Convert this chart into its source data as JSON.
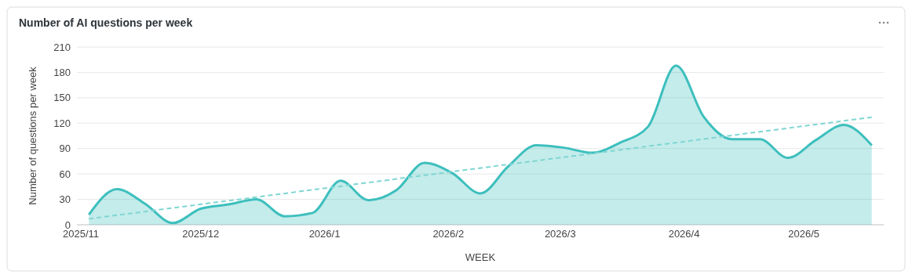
{
  "chart_data": {
    "type": "area",
    "title": "Number of AI questions per week",
    "xlabel": "WEEK",
    "ylabel": "Number of questions per week",
    "x": [
      "2025-11-03",
      "2025-11-10",
      "2025-11-17",
      "2025-11-24",
      "2025-12-01",
      "2025-12-08",
      "2025-12-15",
      "2025-12-22",
      "2025-12-29",
      "2026-01-05",
      "2026-01-12",
      "2026-01-19",
      "2026-01-26",
      "2026-02-02",
      "2026-02-09",
      "2026-02-16",
      "2026-02-23",
      "2026-03-02",
      "2026-03-09",
      "2026-03-16",
      "2026-03-23",
      "2026-03-30",
      "2026-04-06",
      "2026-04-13",
      "2026-04-20",
      "2026-04-27",
      "2026-05-04",
      "2026-05-11",
      "2026-05-18"
    ],
    "series": [
      {
        "color": "#3dbfbd",
        "values": [
          12,
          42,
          25,
          2,
          19,
          24,
          30,
          10,
          14,
          52,
          29,
          41,
          73,
          61,
          37,
          69,
          94,
          91,
          85,
          97,
          116,
          188,
          127,
          101,
          101,
          79,
          100,
          118,
          94
        ]
      },
      {
        "type": "line",
        "color": "#7fd6d2",
        "line_style": "dashed",
        "x": [
          "2025-11-03",
          "2026-05-18"
        ],
        "values": [
          7,
          127
        ]
      }
    ],
    "xlim": [
      "2025-10-31",
      "2026-05-21"
    ],
    "xticks": [
      {
        "value": "2025-11-01",
        "label": "2025/11"
      },
      {
        "value": "2025-12-01",
        "label": "2025/12"
      },
      {
        "value": "2026-01-01",
        "label": "2026/1"
      },
      {
        "value": "2026-02-01",
        "label": "2026/2"
      },
      {
        "value": "2026-03-01",
        "label": "2026/3"
      },
      {
        "value": "2026-04-01",
        "label": "2026/4"
      },
      {
        "value": "2026-05-01",
        "label": "2026/5"
      }
    ],
    "ylim": [
      0,
      210
    ],
    "yticks": [
      0,
      30,
      60,
      90,
      120,
      150,
      180,
      210
    ],
    "grid": "y"
  }
}
